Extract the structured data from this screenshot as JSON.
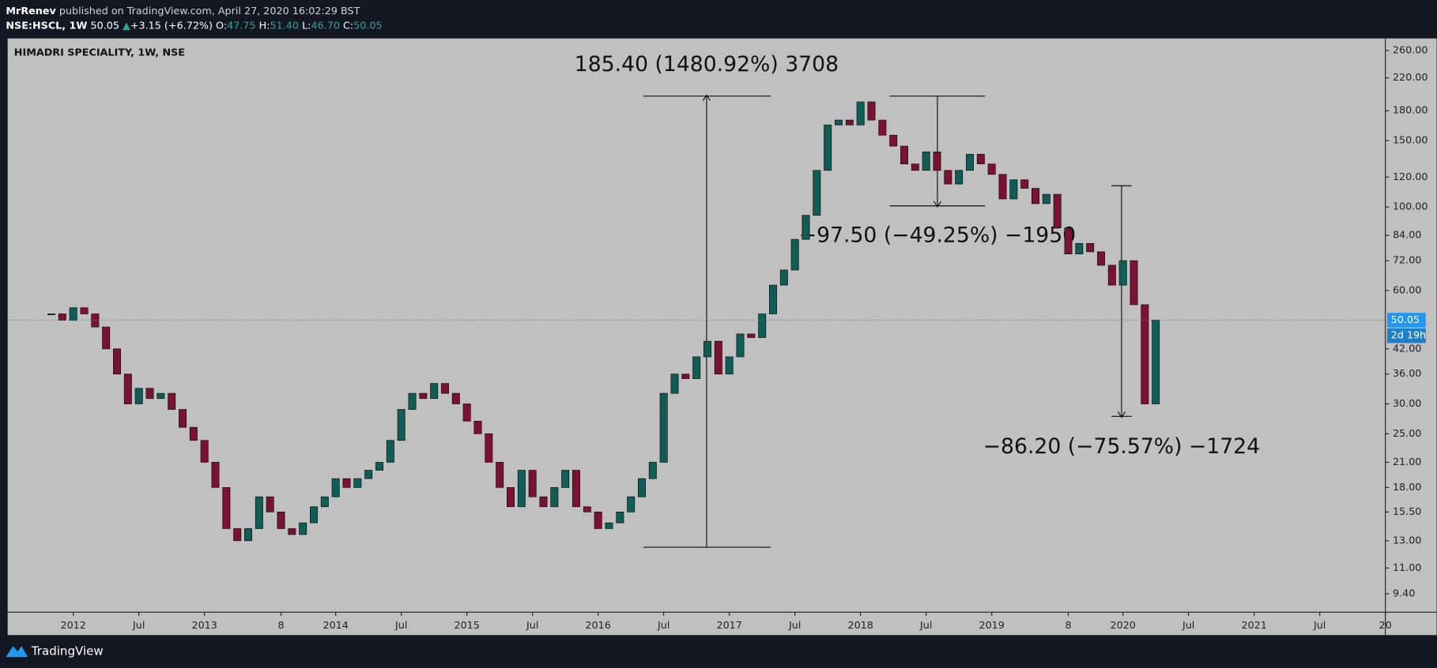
{
  "header": {
    "author": "MrRenev",
    "published": "published on TradingView.com, April 27, 2020 16:02:29 BST",
    "symbol": "NSE:HSCL, 1W",
    "last": "50.05",
    "arrow": "▲",
    "change": "+3.15 (+6.72%)",
    "ohlc": [
      {
        "key": "O:",
        "value": "47.75"
      },
      {
        "key": "H:",
        "value": "51.40"
      },
      {
        "key": "L:",
        "value": "46.70"
      },
      {
        "key": "C:",
        "value": "50.05"
      }
    ]
  },
  "footer": {
    "brand": "TradingView"
  },
  "chart_data": {
    "type": "candlestick",
    "title": "HIMADRI SPECIALITY, 1W, NSE",
    "x": [
      "2011-11",
      "2011-12",
      "2012-01",
      "2012-02",
      "2012-03",
      "2012-04",
      "2012-05",
      "2012-06",
      "2012-07",
      "2012-08",
      "2012-09",
      "2012-10",
      "2012-11",
      "2012-12",
      "2013-01",
      "2013-02",
      "2013-03",
      "2013-04",
      "2013-05",
      "2013-06",
      "2013-07",
      "2013-08",
      "2013-09",
      "2013-10",
      "2013-11",
      "2013-12",
      "2014-01",
      "2014-02",
      "2014-03",
      "2014-04",
      "2014-05",
      "2014-06",
      "2014-07",
      "2014-08",
      "2014-09",
      "2014-10",
      "2014-11",
      "2014-12",
      "2015-01",
      "2015-02",
      "2015-03",
      "2015-04",
      "2015-05",
      "2015-06",
      "2015-07",
      "2015-08",
      "2015-09",
      "2015-10",
      "2015-11",
      "2015-12",
      "2016-01",
      "2016-02",
      "2016-03",
      "2016-04",
      "2016-05",
      "2016-06",
      "2016-07",
      "2016-08",
      "2016-09",
      "2016-10",
      "2016-11",
      "2016-12",
      "2017-01",
      "2017-02",
      "2017-03",
      "2017-04",
      "2017-05",
      "2017-06",
      "2017-07",
      "2017-08",
      "2017-09",
      "2017-10",
      "2017-11",
      "2017-12",
      "2018-01",
      "2018-02",
      "2018-03",
      "2018-04",
      "2018-05",
      "2018-06",
      "2018-07",
      "2018-08",
      "2018-09",
      "2018-10",
      "2018-11",
      "2018-12",
      "2019-01",
      "2019-02",
      "2019-03",
      "2019-04",
      "2019-05",
      "2019-06",
      "2019-07",
      "2019-08",
      "2019-09",
      "2019-10",
      "2019-11",
      "2019-12",
      "2020-01",
      "2020-02",
      "2020-03",
      "2020-04"
    ],
    "close": [
      52,
      50,
      54,
      52,
      48,
      42,
      36,
      30,
      33,
      31,
      32,
      29,
      26,
      24,
      21,
      18,
      14,
      13,
      14,
      17,
      15.5,
      14,
      13.5,
      14.5,
      16,
      17,
      19,
      18,
      19,
      20,
      21,
      24,
      29,
      32,
      31,
      34,
      32,
      30,
      27,
      25,
      21,
      18,
      16,
      20,
      17,
      16,
      18,
      20,
      16,
      15.5,
      14,
      14.5,
      15.5,
      17,
      19,
      21,
      32,
      36,
      35,
      40,
      44,
      36,
      40,
      46,
      45,
      52,
      62,
      68,
      82,
      95,
      125,
      165,
      170,
      165,
      190,
      170,
      155,
      145,
      130,
      125,
      140,
      125,
      115,
      125,
      138,
      130,
      122,
      105,
      118,
      112,
      102,
      108,
      88,
      75,
      80,
      76,
      70,
      62,
      72,
      55,
      30,
      50.05
    ],
    "up_color": "#0f5d56",
    "down_color": "#7a1232",
    "log_scale": true,
    "ylim": [
      8.4,
      280
    ],
    "yticks": [
      {
        "value": 260,
        "label": "260.00"
      },
      {
        "value": 220,
        "label": "220.00"
      },
      {
        "value": 180,
        "label": "180.00"
      },
      {
        "value": 150,
        "label": "150.00"
      },
      {
        "value": 120,
        "label": "120.00"
      },
      {
        "value": 100,
        "label": "100.00"
      },
      {
        "value": 84,
        "label": "84.00"
      },
      {
        "value": 72,
        "label": "72.00"
      },
      {
        "value": 60,
        "label": "60.00"
      },
      {
        "value": 42,
        "label": "42.00"
      },
      {
        "value": 36,
        "label": "36.00"
      },
      {
        "value": 30,
        "label": "30.00"
      },
      {
        "value": 25,
        "label": "25.00"
      },
      {
        "value": 21,
        "label": "21.00"
      },
      {
        "value": 18,
        "label": "18.00"
      },
      {
        "value": 15.5,
        "label": "15.50"
      },
      {
        "value": 13,
        "label": "13.00"
      },
      {
        "value": 11,
        "label": "11.00"
      },
      {
        "value": 9.4,
        "label": "9.40"
      }
    ],
    "xlim": [
      "2011-07",
      "2022-01"
    ],
    "xticks": [
      {
        "value": "2012-01",
        "label": "2012"
      },
      {
        "value": "2012-07",
        "label": "Jul"
      },
      {
        "value": "2013-01",
        "label": "2013"
      },
      {
        "value": "2013-08",
        "label": "8"
      },
      {
        "value": "2014-01",
        "label": "2014"
      },
      {
        "value": "2014-07",
        "label": "Jul"
      },
      {
        "value": "2015-01",
        "label": "2015"
      },
      {
        "value": "2015-07",
        "label": "Jul"
      },
      {
        "value": "2016-01",
        "label": "2016"
      },
      {
        "value": "2016-07",
        "label": "Jul"
      },
      {
        "value": "2017-01",
        "label": "2017"
      },
      {
        "value": "2017-07",
        "label": "Jul"
      },
      {
        "value": "2018-01",
        "label": "2018"
      },
      {
        "value": "2018-07",
        "label": "Jul"
      },
      {
        "value": "2019-01",
        "label": "2019"
      },
      {
        "value": "2019-08",
        "label": "8"
      },
      {
        "value": "2020-01",
        "label": "2020"
      },
      {
        "value": "2020-07",
        "label": "Jul"
      },
      {
        "value": "2021-01",
        "label": "2021"
      },
      {
        "value": "2021-07",
        "label": "Jul"
      },
      {
        "value": "2022-01",
        "label": "20"
      }
    ],
    "last_price": 50.05,
    "last_price_color": "#2196f3",
    "countdown": "2d 19h",
    "annotations": [
      "185.40 (1480.92%) 3708",
      "−97.50 (−49.25%) −1950",
      "−86.20 (−75.57%) −1724"
    ]
  }
}
